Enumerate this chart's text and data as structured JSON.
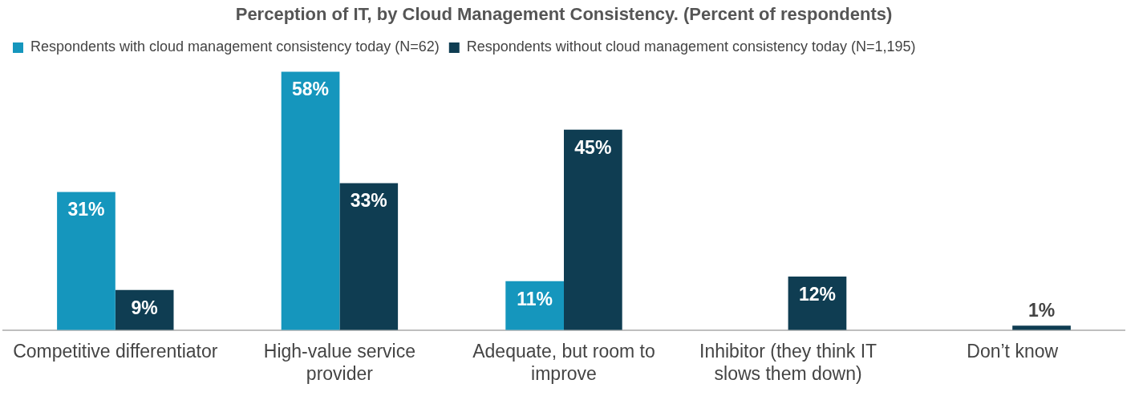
{
  "chart_data": {
    "type": "bar",
    "title": "Perception of IT, by Cloud Management Consistency. (Percent of respondents)",
    "categories": [
      "Competitive differentiator",
      "High-value service provider",
      "Adequate, but room to improve",
      "Inhibitor (they think IT slows them down)",
      "Don’t know"
    ],
    "series": [
      {
        "name": "Respondents with cloud management consistency today (N=62)",
        "color": "#1596bd",
        "values": [
          31,
          58,
          11,
          null,
          null
        ],
        "value_labels": [
          "31%",
          "58%",
          "11%",
          null,
          null
        ]
      },
      {
        "name": "Respondents without cloud management consistency today (N=1,195)",
        "color": "#0f3d52",
        "values": [
          9,
          33,
          45,
          12,
          1
        ],
        "value_labels": [
          "9%",
          "33%",
          "45%",
          "12%",
          "1%"
        ]
      }
    ],
    "grid": false,
    "legend": "top left"
  }
}
